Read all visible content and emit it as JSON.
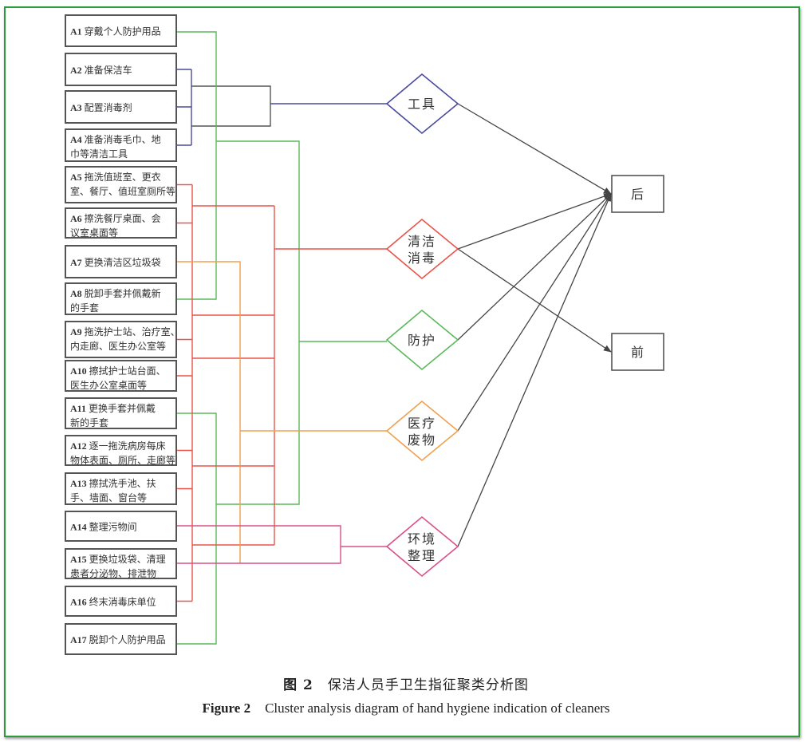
{
  "items": [
    {
      "code": "A1",
      "text": [
        "穿戴个人防护用品"
      ],
      "cluster": "protect"
    },
    {
      "code": "A2",
      "text": [
        "准备保洁车"
      ],
      "cluster": "tools"
    },
    {
      "code": "A3",
      "text": [
        "配置消毒剂"
      ],
      "cluster": "tools"
    },
    {
      "code": "A4",
      "text": [
        "准备消毒毛巾、地",
        "巾等清洁工具"
      ],
      "cluster": "tools"
    },
    {
      "code": "A5",
      "text": [
        "拖洗值班室、更衣",
        "室、餐厅、值班室厕所等"
      ],
      "cluster": "clean"
    },
    {
      "code": "A6",
      "text": [
        "擦洗餐厅桌面、会",
        "议室桌面等"
      ],
      "cluster": "clean"
    },
    {
      "code": "A7",
      "text": [
        "更换清洁区垃圾袋"
      ],
      "cluster": "waste"
    },
    {
      "code": "A8",
      "text": [
        "脱卸手套并佩戴新",
        "的手套"
      ],
      "cluster": "protect"
    },
    {
      "code": "A9",
      "text": [
        "拖洗护士站、治疗室、",
        "内走廊、医生办公室等"
      ],
      "cluster": "clean"
    },
    {
      "code": "A10",
      "text": [
        "擦拭护士站台面、",
        "医生办公室桌面等"
      ],
      "cluster": "clean"
    },
    {
      "code": "A11",
      "text": [
        "更换手套并佩戴",
        "新的手套"
      ],
      "cluster": "protect"
    },
    {
      "code": "A12",
      "text": [
        "逐一拖洗病房每床",
        "物体表面、厕所、走廊等"
      ],
      "cluster": "clean"
    },
    {
      "code": "A13",
      "text": [
        "擦拭洗手池、扶",
        "手、墙面、窗台等"
      ],
      "cluster": "clean"
    },
    {
      "code": "A14",
      "text": [
        "整理污物间"
      ],
      "cluster": "env"
    },
    {
      "code": "A15",
      "text": [
        "更换垃圾袋、清理",
        "患者分泌物、排泄物"
      ],
      "cluster": "env"
    },
    {
      "code": "A16",
      "text": [
        "终末消毒床单位"
      ],
      "cluster": "clean"
    },
    {
      "code": "A17",
      "text": [
        "脱卸个人防护用品"
      ],
      "cluster": "protect"
    }
  ],
  "clusters": [
    {
      "id": "tools",
      "label": [
        "工具"
      ],
      "color": "#4a4aa0",
      "targets": [
        "after"
      ]
    },
    {
      "id": "clean",
      "label": [
        "清洁",
        "消毒"
      ],
      "color": "#e8544a",
      "targets": [
        "after",
        "before"
      ]
    },
    {
      "id": "protect",
      "label": [
        "防护"
      ],
      "color": "#5cb85c",
      "targets": [
        "after"
      ]
    },
    {
      "id": "waste",
      "label": [
        "医疗",
        "废物"
      ],
      "color": "#f0a050",
      "targets": [
        "after"
      ]
    },
    {
      "id": "env",
      "label": [
        "环境",
        "整理"
      ],
      "color": "#d9508a",
      "targets": [
        "after"
      ]
    }
  ],
  "outcomes": [
    {
      "id": "after",
      "label": "后"
    },
    {
      "id": "before",
      "label": "前"
    }
  ],
  "caption": {
    "cn_prefix": "图 2",
    "cn_title": "保洁人员手卫生指征聚类分析图",
    "en_prefix": "Figure 2",
    "en_title": "Cluster analysis diagram of hand hygiene indication of cleaners"
  },
  "colors": {
    "frame": "#2e9a3a",
    "box_border": "#555555",
    "arrow": "#444444"
  }
}
